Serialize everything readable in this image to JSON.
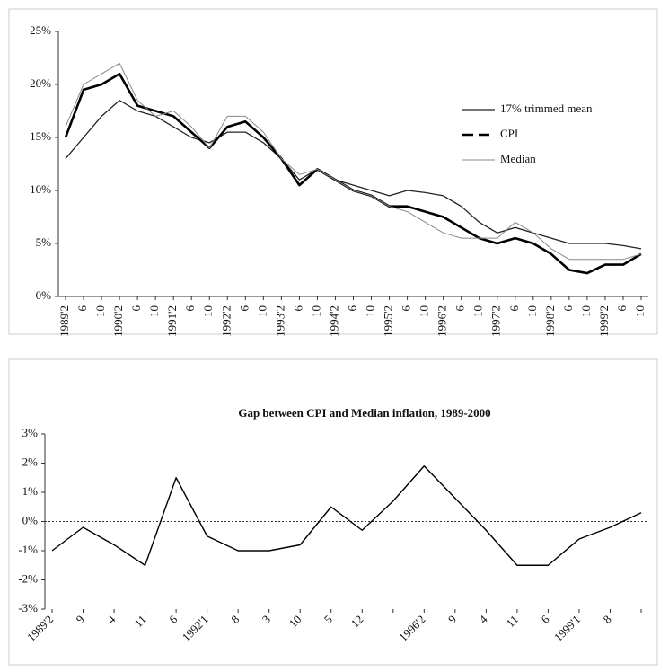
{
  "chart_data": [
    {
      "type": "line",
      "categories": [
        "1989'2",
        "6",
        "10",
        "1990'2",
        "6",
        "10",
        "1991'2",
        "6",
        "10",
        "1992'2",
        "6",
        "10",
        "1993'2",
        "6",
        "10",
        "1994'2",
        "6",
        "10",
        "1995'2",
        "6",
        "10",
        "1996'2",
        "6",
        "10",
        "1997'2",
        "6",
        "10",
        "1998'2",
        "6",
        "10",
        "1999'2",
        "6",
        "10"
      ],
      "series": [
        {
          "name": "17% trimmed mean",
          "color": "#222222",
          "values": [
            13,
            15,
            17,
            18.5,
            17.5,
            17,
            16,
            15,
            14.5,
            15.5,
            15.5,
            14.5,
            13,
            11,
            12,
            11,
            10.5,
            10,
            9.5,
            10,
            9.8,
            9.5,
            8.5,
            7,
            6,
            6.5,
            6,
            5.5,
            5,
            5,
            5,
            4.8,
            4.5
          ]
        },
        {
          "name": "CPI",
          "color": "#000000",
          "values": [
            15,
            19.5,
            20,
            21,
            18,
            17.5,
            17,
            15.5,
            14,
            16,
            16.5,
            15,
            13,
            10.5,
            12,
            11,
            10,
            9.5,
            8.5,
            8.5,
            8,
            7.5,
            6.5,
            5.5,
            5,
            5.5,
            5,
            4,
            2.5,
            2.2,
            3,
            3,
            4
          ]
        },
        {
          "name": "Median",
          "color": "#888888",
          "values": [
            16,
            20,
            21,
            22,
            18.5,
            17,
            17.5,
            16,
            14,
            17,
            17,
            15.5,
            13,
            11.5,
            12,
            11,
            10,
            9.5,
            8.5,
            8,
            7,
            6,
            5.5,
            5.5,
            5.5,
            7,
            6,
            4.5,
            3.5,
            3.5,
            3.5,
            3.5,
            4
          ]
        }
      ],
      "ylim": [
        0,
        25
      ],
      "yticks": [
        {
          "value": 0,
          "label": "0%"
        },
        {
          "value": 5,
          "label": "5%"
        },
        {
          "value": 10,
          "label": "10%"
        },
        {
          "value": 15,
          "label": "15%"
        },
        {
          "value": 20,
          "label": "20%"
        },
        {
          "value": 25,
          "label": "25%"
        }
      ],
      "legend": "right"
    },
    {
      "type": "line",
      "title": "Gap between CPI and Median inflation, 1989-2000",
      "categories": [
        "1989'2",
        "9",
        "4",
        "11",
        "6",
        "1992'1",
        "8",
        "3",
        "10",
        "5",
        "12",
        null,
        "1996'2",
        "9",
        "4",
        "11",
        "6",
        "1999'1",
        "8",
        null
      ],
      "series": [
        {
          "name": null,
          "color": "#000000",
          "values": [
            -1,
            -0.2,
            -0.8,
            -1.5,
            1.5,
            -0.5,
            -1,
            -1,
            -0.8,
            0.5,
            -0.3,
            0.7,
            1.9,
            0.8,
            -0.3,
            -1.5,
            -1.5,
            -0.6,
            -0.2,
            0.3
          ]
        }
      ],
      "ylim": [
        -3,
        3
      ],
      "yticks": [
        {
          "value": -3,
          "label": "-3%"
        },
        {
          "value": -2,
          "label": "-2%"
        },
        {
          "value": -1,
          "label": "-1%"
        },
        {
          "value": 0,
          "label": "0%"
        },
        {
          "value": 1,
          "label": "1%"
        },
        {
          "value": 2,
          "label": "2%"
        },
        {
          "value": 3,
          "label": "3%"
        }
      ]
    }
  ]
}
